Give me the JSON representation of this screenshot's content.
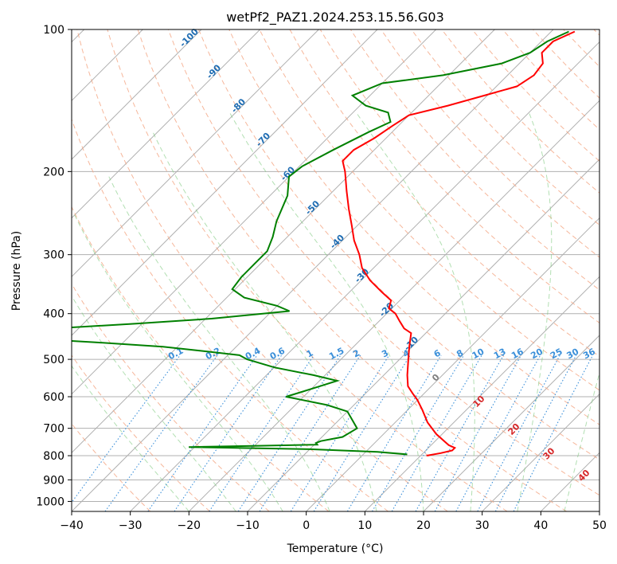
{
  "chart_data": {
    "type": "line",
    "subtype": "skew-t log-p",
    "title": "wetPf2_PAZ1.2024.253.15.56.G03",
    "xlabel": "Temperature (°C)",
    "ylabel": "Pressure (hPa)",
    "xlim": [
      -40,
      50
    ],
    "ylim": [
      1050,
      100
    ],
    "yscale": "log",
    "grid": true,
    "x_ticks": [
      "−40",
      "−30",
      "−20",
      "−10",
      "0",
      "10",
      "20",
      "30",
      "40",
      "50"
    ],
    "y_ticks": [
      "100",
      "200",
      "300",
      "400",
      "500",
      "600",
      "700",
      "800",
      "900",
      "1000"
    ],
    "series": [
      {
        "name": "",
        "color": "#ff0000",
        "points": [
          [
            -36,
            101
          ],
          [
            -38,
            106
          ],
          [
            -38,
            112
          ],
          [
            -36,
            118
          ],
          [
            -35.5,
            125
          ],
          [
            -36.5,
            132
          ],
          [
            -40.5,
            138
          ],
          [
            -45,
            145
          ],
          [
            -50,
            152
          ],
          [
            -51,
            160
          ],
          [
            -52,
            170
          ],
          [
            -53.5,
            180
          ],
          [
            -53.5,
            190
          ],
          [
            -51.3,
            200
          ],
          [
            -47.7,
            220
          ],
          [
            -44.3,
            240
          ],
          [
            -41,
            260
          ],
          [
            -38,
            280
          ],
          [
            -34.7,
            300
          ],
          [
            -32,
            320
          ],
          [
            -28.5,
            340
          ],
          [
            -24.5,
            360
          ],
          [
            -21.5,
            375
          ],
          [
            -20.5,
            390
          ],
          [
            -18.5,
            400
          ],
          [
            -16.5,
            415
          ],
          [
            -14.5,
            430
          ],
          [
            -12.5,
            440
          ],
          [
            -10.5,
            470
          ],
          [
            -8.5,
            500
          ],
          [
            -6,
            540
          ],
          [
            -4,
            570
          ],
          [
            -2,
            590
          ],
          [
            0,
            610
          ],
          [
            2.5,
            640
          ],
          [
            5.5,
            680
          ],
          [
            9,
            720
          ],
          [
            13,
            760
          ],
          [
            14.5,
            770
          ],
          [
            14.5,
            780
          ],
          [
            13,
            790
          ],
          [
            11,
            800
          ]
        ]
      },
      {
        "name": "",
        "color": "#008000",
        "points": [
          [
            -37,
            101
          ],
          [
            -39,
            106
          ],
          [
            -40,
            112
          ],
          [
            -43,
            118
          ],
          [
            -51,
            125
          ],
          [
            -60,
            130
          ],
          [
            -63,
            138
          ],
          [
            -59,
            145
          ],
          [
            -54,
            150
          ],
          [
            -52,
            157
          ],
          [
            -54,
            165
          ],
          [
            -57,
            180
          ],
          [
            -59.5,
            195
          ],
          [
            -60,
            205
          ],
          [
            -57,
            225
          ],
          [
            -54.5,
            255
          ],
          [
            -52.5,
            275
          ],
          [
            -51,
            295
          ],
          [
            -51,
            315
          ],
          [
            -51,
            335
          ],
          [
            -50.5,
            355
          ],
          [
            -47,
            370
          ],
          [
            -40,
            385
          ],
          [
            -37,
            395
          ],
          [
            -49,
            410
          ],
          [
            -61,
            420
          ],
          [
            -74,
            430
          ],
          [
            -78,
            440
          ],
          [
            -79,
            450
          ],
          [
            -65,
            460
          ],
          [
            -52.5,
            470
          ],
          [
            -45,
            480
          ],
          [
            -38,
            490
          ],
          [
            -36,
            500
          ],
          [
            -30,
            520
          ],
          [
            -22,
            540
          ],
          [
            -17,
            555
          ],
          [
            -19,
            570
          ],
          [
            -21,
            585
          ],
          [
            -23,
            600
          ],
          [
            -19.5,
            610
          ],
          [
            -14.5,
            625
          ],
          [
            -10,
            645
          ],
          [
            -7.5,
            675
          ],
          [
            -5.5,
            700
          ],
          [
            -6.5,
            730
          ],
          [
            -9.5,
            745
          ],
          [
            -10,
            752
          ],
          [
            -9.5,
            758
          ],
          [
            -18.5,
            762
          ],
          [
            -31,
            767
          ],
          [
            -10,
            775
          ],
          [
            2,
            785
          ],
          [
            7.5,
            795
          ]
        ]
      }
    ],
    "isohumes_gkg": [
      "0.1",
      "0.2",
      "0.4",
      "0.6",
      "1",
      "1.5",
      "2",
      "3",
      "4",
      "6",
      "8",
      "10",
      "13",
      "16",
      "20",
      "25",
      "30",
      "36"
    ],
    "isotherm_labels_top": [
      "-100",
      "-90",
      "-80",
      "-70",
      "-60",
      "-50",
      "-40",
      "-30",
      "-20",
      "-10",
      "0"
    ],
    "isotherm_labels_bottom": [
      "10",
      "20",
      "30",
      "40"
    ]
  }
}
